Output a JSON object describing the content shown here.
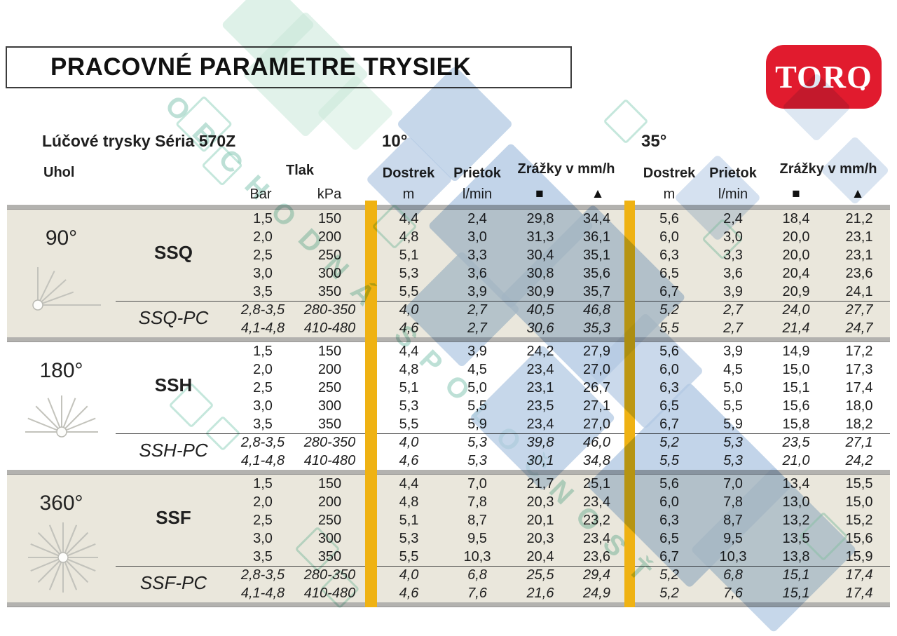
{
  "title": "PRACOVNÉ PARAMETRE TRYSIEK",
  "logo": {
    "text": "TORO",
    "bg_color": "#e11b2e"
  },
  "watermark": {
    "text": "OBCHODNÁ SPOLOČNOSŤ",
    "blue": "#b3c9e3",
    "green": "#c8e8d8",
    "teal_outline": "rgba(150,212,192,0.55)"
  },
  "colors": {
    "stripe_gold": "#efb213",
    "section_beige": "#eae7dc",
    "section_white": "#ffffff",
    "separator_gray": "#b3b2af"
  },
  "header": {
    "series_label": "Lúčové trysky Séria 570Z",
    "angle_10": "10°",
    "angle_35": "35°",
    "col_uhol": "Uhol",
    "col_tlak": "Tlak",
    "col_bar": "Bar",
    "col_kpa": "kPa",
    "col_dostrek": "Dostrek",
    "col_prietok": "Prietok",
    "col_zrazky": "Zrážky v mm/h",
    "unit_m": "m",
    "unit_lmin": "l/min",
    "sym_square": "■",
    "sym_triangle": "▲"
  },
  "table": {
    "sections": [
      {
        "angle": "90°",
        "icon": "spray-90",
        "model": "SSQ",
        "model_pc": "SSQ-PC",
        "bg": "#eae7dc",
        "rows": [
          {
            "bar": "1,5",
            "kpa": "150",
            "d10": "4,4",
            "p10": "2,4",
            "sq10": "29,8",
            "tr10": "34,4",
            "d35": "5,6",
            "p35": "2,4",
            "sq35": "18,4",
            "tr35": "21,2"
          },
          {
            "bar": "2,0",
            "kpa": "200",
            "d10": "4,8",
            "p10": "3,0",
            "sq10": "31,3",
            "tr10": "36,1",
            "d35": "6,0",
            "p35": "3,0",
            "sq35": "20,0",
            "tr35": "23,1"
          },
          {
            "bar": "2,5",
            "kpa": "250",
            "d10": "5,1",
            "p10": "3,3",
            "sq10": "30,4",
            "tr10": "35,1",
            "d35": "6,3",
            "p35": "3,3",
            "sq35": "20,0",
            "tr35": "23,1"
          },
          {
            "bar": "3,0",
            "kpa": "300",
            "d10": "5,3",
            "p10": "3,6",
            "sq10": "30,8",
            "tr10": "35,6",
            "d35": "6,5",
            "p35": "3,6",
            "sq35": "20,4",
            "tr35": "23,6"
          },
          {
            "bar": "3,5",
            "kpa": "350",
            "d10": "5,5",
            "p10": "3,9",
            "sq10": "30,9",
            "tr10": "35,7",
            "d35": "6,7",
            "p35": "3,9",
            "sq35": "20,9",
            "tr35": "24,1"
          }
        ],
        "pc_rows": [
          {
            "bar": "2,8-3,5",
            "kpa": "280-350",
            "d10": "4,0",
            "p10": "2,7",
            "sq10": "40,5",
            "tr10": "46,8",
            "d35": "5,2",
            "p35": "2,7",
            "sq35": "24,0",
            "tr35": "27,7"
          },
          {
            "bar": "4,1-4,8",
            "kpa": "410-480",
            "d10": "4,6",
            "p10": "2,7",
            "sq10": "30,6",
            "tr10": "35,3",
            "d35": "5,5",
            "p35": "2,7",
            "sq35": "21,4",
            "tr35": "24,7"
          }
        ]
      },
      {
        "angle": "180°",
        "icon": "spray-180",
        "model": "SSH",
        "model_pc": "SSH-PC",
        "bg": "#ffffff",
        "rows": [
          {
            "bar": "1,5",
            "kpa": "150",
            "d10": "4,4",
            "p10": "3,9",
            "sq10": "24,2",
            "tr10": "27,9",
            "d35": "5,6",
            "p35": "3,9",
            "sq35": "14,9",
            "tr35": "17,2"
          },
          {
            "bar": "2,0",
            "kpa": "200",
            "d10": "4,8",
            "p10": "4,5",
            "sq10": "23,4",
            "tr10": "27,0",
            "d35": "6,0",
            "p35": "4,5",
            "sq35": "15,0",
            "tr35": "17,3"
          },
          {
            "bar": "2,5",
            "kpa": "250",
            "d10": "5,1",
            "p10": "5,0",
            "sq10": "23,1",
            "tr10": "26,7",
            "d35": "6,3",
            "p35": "5,0",
            "sq35": "15,1",
            "tr35": "17,4"
          },
          {
            "bar": "3,0",
            "kpa": "300",
            "d10": "5,3",
            "p10": "5,5",
            "sq10": "23,5",
            "tr10": "27,1",
            "d35": "6,5",
            "p35": "5,5",
            "sq35": "15,6",
            "tr35": "18,0"
          },
          {
            "bar": "3,5",
            "kpa": "350",
            "d10": "5,5",
            "p10": "5,9",
            "sq10": "23,4",
            "tr10": "27,0",
            "d35": "6,7",
            "p35": "5,9",
            "sq35": "15,8",
            "tr35": "18,2"
          }
        ],
        "pc_rows": [
          {
            "bar": "2,8-3,5",
            "kpa": "280-350",
            "d10": "4,0",
            "p10": "5,3",
            "sq10": "39,8",
            "tr10": "46,0",
            "d35": "5,2",
            "p35": "5,3",
            "sq35": "23,5",
            "tr35": "27,1"
          },
          {
            "bar": "4,1-4,8",
            "kpa": "410-480",
            "d10": "4,6",
            "p10": "5,3",
            "sq10": "30,1",
            "tr10": "34,8",
            "d35": "5,5",
            "p35": "5,3",
            "sq35": "21,0",
            "tr35": "24,2"
          }
        ]
      },
      {
        "angle": "360°",
        "icon": "spray-360",
        "model": "SSF",
        "model_pc": "SSF-PC",
        "bg": "#eae7dc",
        "rows": [
          {
            "bar": "1,5",
            "kpa": "150",
            "d10": "4,4",
            "p10": "7,0",
            "sq10": "21,7",
            "tr10": "25,1",
            "d35": "5,6",
            "p35": "7,0",
            "sq35": "13,4",
            "tr35": "15,5"
          },
          {
            "bar": "2,0",
            "kpa": "200",
            "d10": "4,8",
            "p10": "7,8",
            "sq10": "20,3",
            "tr10": "23,4",
            "d35": "6,0",
            "p35": "7,8",
            "sq35": "13,0",
            "tr35": "15,0"
          },
          {
            "bar": "2,5",
            "kpa": "250",
            "d10": "5,1",
            "p10": "8,7",
            "sq10": "20,1",
            "tr10": "23,2",
            "d35": "6,3",
            "p35": "8,7",
            "sq35": "13,2",
            "tr35": "15,2"
          },
          {
            "bar": "3,0",
            "kpa": "300",
            "d10": "5,3",
            "p10": "9,5",
            "sq10": "20,3",
            "tr10": "23,4",
            "d35": "6,5",
            "p35": "9,5",
            "sq35": "13,5",
            "tr35": "15,6"
          },
          {
            "bar": "3,5",
            "kpa": "350",
            "d10": "5,5",
            "p10": "10,3",
            "sq10": "20,4",
            "tr10": "23,6",
            "d35": "6,7",
            "p35": "10,3",
            "sq35": "13,8",
            "tr35": "15,9"
          }
        ],
        "pc_rows": [
          {
            "bar": "2,8-3,5",
            "kpa": "280-350",
            "d10": "4,0",
            "p10": "6,8",
            "sq10": "25,5",
            "tr10": "29,4",
            "d35": "5,2",
            "p35": "6,8",
            "sq35": "15,1",
            "tr35": "17,4"
          },
          {
            "bar": "4,1-4,8",
            "kpa": "410-480",
            "d10": "4,6",
            "p10": "7,6",
            "sq10": "21,6",
            "tr10": "24,9",
            "d35": "5,2",
            "p35": "7,6",
            "sq35": "15,1",
            "tr35": "17,4"
          }
        ]
      }
    ]
  }
}
